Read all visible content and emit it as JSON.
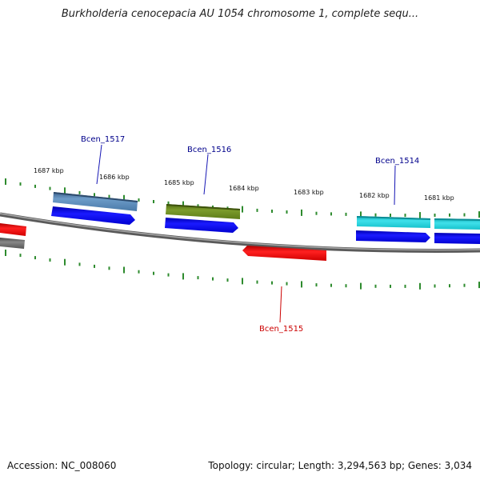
{
  "title": "Burkholderia cenocepacia AU 1054 chromosome 1, complete sequ...",
  "footer": {
    "accession": "Accession: NC_008060",
    "topology": "Topology: circular; Length: 3,294,563 bp; Genes: 3,034"
  },
  "scale_labels": [
    "1687 kbp",
    "1686 kbp",
    "1685 kbp",
    "1684 kbp",
    "1683 kbp",
    "1682 kbp",
    "1681 kbp"
  ],
  "genes": [
    {
      "name": "Bcen_1517",
      "color": "#00008b"
    },
    {
      "name": "Bcen_1516",
      "color": "#00008b"
    },
    {
      "name": "Bcen_1515",
      "color": "#cc0000"
    },
    {
      "name": "Bcen_1514",
      "color": "#00008b"
    }
  ],
  "colors": {
    "backbone": "#888888",
    "tick": "#2e8b2e",
    "cds": "#0000ee",
    "leader": "#1414b4",
    "leader_minus": "#cc0000"
  }
}
